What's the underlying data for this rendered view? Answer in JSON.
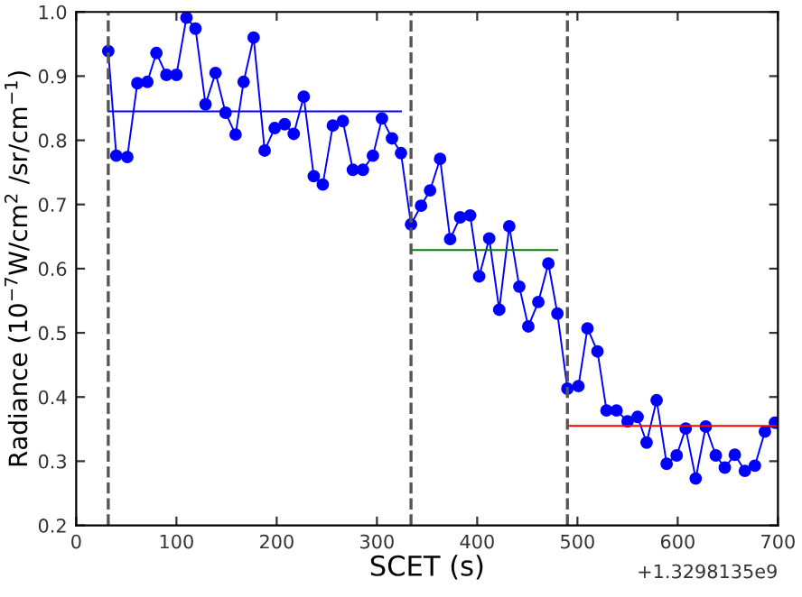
{
  "chart_data": {
    "type": "line",
    "xlabel": "SCET (s)",
    "ylabel": "Radiance (10$^{−7}$W/cm$^{2}$ /sr/cm$^{−1}$)",
    "xlim": [
      0,
      700
    ],
    "xticks": [
      0,
      100,
      200,
      300,
      400,
      500,
      600,
      700
    ],
    "ylim": [
      0.2,
      1.0
    ],
    "yticks": [
      0.2,
      0.3,
      0.4,
      0.5,
      0.6,
      0.7,
      0.8,
      0.9,
      {
        "value": 1.0,
        "label": "1.0"
      }
    ],
    "grid": false,
    "marker": "circle",
    "line_style": "solid",
    "series": [
      {
        "color": "#0000ff",
        "x": [
          32,
          40,
          51,
          61,
          71,
          80,
          90,
          100,
          110,
          119,
          129,
          139,
          149,
          159,
          167,
          177,
          188,
          198,
          208,
          217,
          227,
          237,
          246,
          256,
          266,
          276,
          286,
          296,
          305,
          315,
          324,
          334,
          344,
          353,
          363,
          373,
          383,
          393,
          402,
          412,
          422,
          432,
          442,
          451,
          461,
          471,
          480,
          490,
          501,
          510,
          520,
          529,
          539,
          550,
          560,
          569,
          579,
          589,
          599,
          608,
          618,
          628,
          638,
          647,
          657,
          667,
          677,
          687,
          697
        ],
        "values": [
          0.939,
          0.776,
          0.774,
          0.889,
          0.891,
          0.936,
          0.902,
          0.902,
          0.991,
          0.974,
          0.856,
          0.905,
          0.843,
          0.809,
          0.891,
          0.96,
          0.784,
          0.819,
          0.825,
          0.81,
          0.868,
          0.744,
          0.731,
          0.823,
          0.83,
          0.754,
          0.754,
          0.776,
          0.834,
          0.803,
          0.78,
          0.669,
          0.698,
          0.722,
          0.771,
          0.646,
          0.68,
          0.683,
          0.588,
          0.647,
          0.536,
          0.666,
          0.572,
          0.51,
          0.548,
          0.608,
          0.53,
          0.413,
          0.417,
          0.507,
          0.471,
          0.379,
          0.379,
          0.362,
          0.369,
          0.329,
          0.395,
          0.296,
          0.309,
          0.351,
          0.273,
          0.354,
          0.309,
          0.29,
          0.31,
          0.285,
          0.293,
          0.346,
          0.36
        ]
      },
      {
        "color": "#0000ff",
        "marker": "none",
        "x": [
          32,
          324
        ],
        "values": [
          0.845,
          0.845
        ]
      },
      {
        "color": "#008000",
        "marker": "none",
        "x": [
          334,
          480
        ],
        "values": [
          0.629,
          0.629
        ]
      },
      {
        "color": "#ff0000",
        "marker": "none",
        "x": [
          490,
          700
        ],
        "values": [
          0.355,
          0.355
        ]
      }
    ],
    "ref_lines": [
      {
        "axis": "x",
        "value": 32,
        "color": "#555555",
        "line_style": "dashed"
      },
      {
        "axis": "x",
        "value": 334,
        "color": "#555555",
        "line_style": "dashed"
      },
      {
        "axis": "x",
        "value": 490,
        "color": "#555555",
        "line_style": "dashed"
      }
    ],
    "annotations": [
      "+1.3298135e9"
    ]
  }
}
